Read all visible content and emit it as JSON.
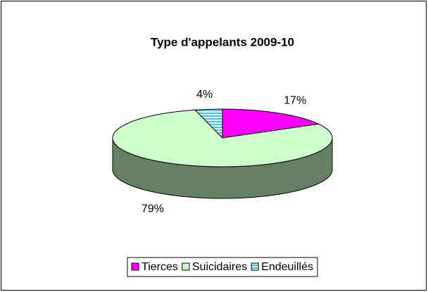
{
  "chart_data": {
    "type": "pie3d",
    "title": "Type d'appelants 2009-10",
    "categories": [
      "Tierces",
      "Suicidaires",
      "Endeuillés"
    ],
    "values": [
      17,
      79,
      4
    ],
    "value_labels": [
      "17%",
      "79%",
      "4%"
    ],
    "colors": [
      "#ff00ff",
      "#ccffcc",
      "#ccffff"
    ],
    "hatch": [
      null,
      null,
      "horizontal"
    ],
    "legend": "bottom"
  }
}
